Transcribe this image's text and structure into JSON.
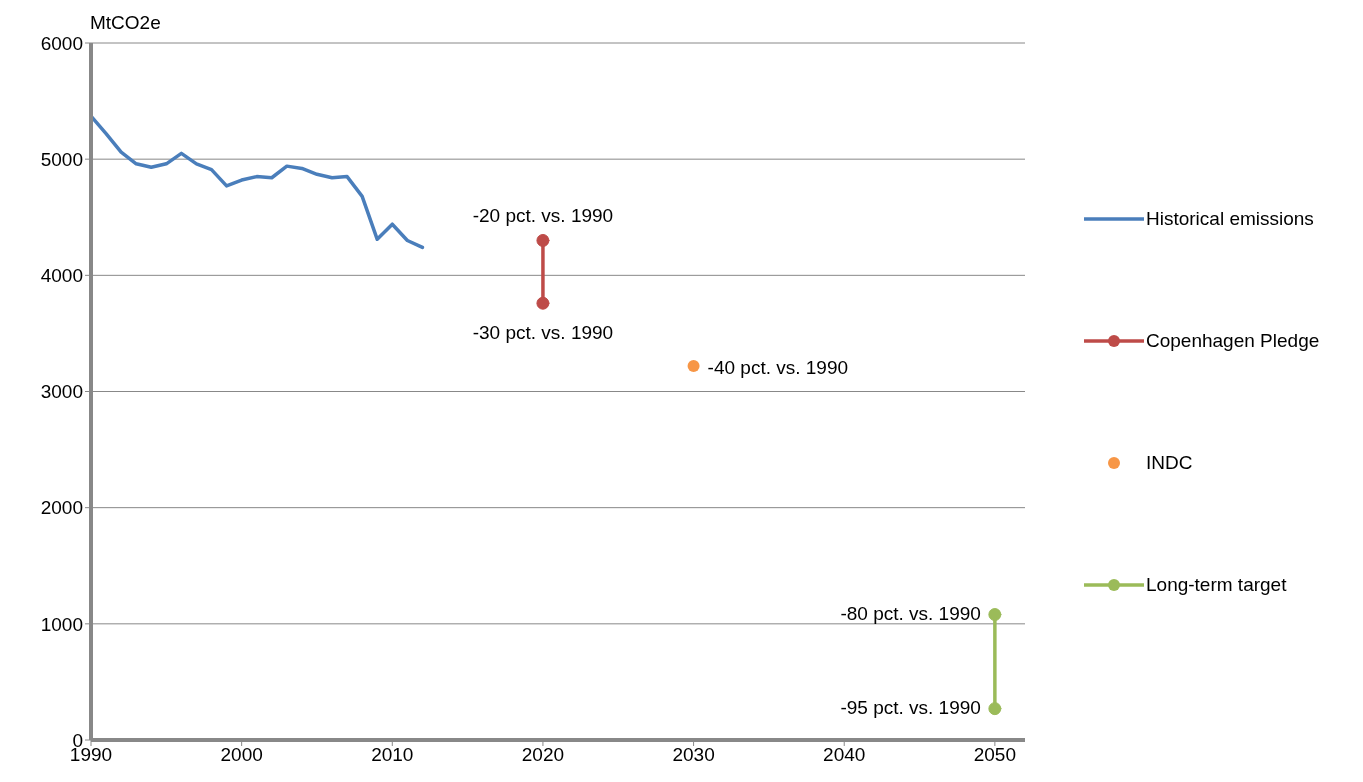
{
  "chart_data": {
    "type": "line",
    "ylabel": "MtCO2e",
    "xlim": [
      1990,
      2052
    ],
    "xticks": [
      1990,
      2000,
      2010,
      2020,
      2030,
      2040,
      2050
    ],
    "ylim": [
      0,
      6000
    ],
    "yticks": [
      0,
      1000,
      2000,
      3000,
      4000,
      5000,
      6000
    ],
    "grid": "y",
    "legend": "right",
    "line_style": "solid",
    "series": [
      {
        "name": "Historical emissions",
        "color": "#4a7ebb",
        "marker": "none",
        "x": [
          1990,
          1991,
          1992,
          1993,
          1994,
          1995,
          1996,
          1997,
          1998,
          1999,
          2000,
          2001,
          2002,
          2003,
          2004,
          2005,
          2006,
          2007,
          2008,
          2009,
          2010,
          2011,
          2012
        ],
        "values": [
          5370,
          5220,
          5060,
          4960,
          4930,
          4960,
          5050,
          4960,
          4910,
          4770,
          4820,
          4850,
          4840,
          4940,
          4920,
          4870,
          4840,
          4850,
          4680,
          4310,
          4440,
          4300,
          4240
        ]
      },
      {
        "name": "Copenhagen Pledge",
        "color": "#be4b48",
        "marker": "circle",
        "x": [
          2020,
          2020
        ],
        "values": [
          4300,
          3760
        ]
      },
      {
        "name": "INDC",
        "type": "scatter",
        "color": "#f79646",
        "marker": "circle",
        "x": [
          2030
        ],
        "values": [
          3220
        ]
      },
      {
        "name": "Long-term target",
        "color": "#9bbb59",
        "marker": "circle",
        "x": [
          2050,
          2050
        ],
        "values": [
          1080,
          270
        ]
      }
    ],
    "annotations": [
      {
        "text": "-20 pct. vs. 1990",
        "x": 2020,
        "y": 4300
      },
      {
        "text": "-30 pct. vs. 1990",
        "x": 2020,
        "y": 3760
      },
      {
        "text": "-40 pct. vs. 1990",
        "x": 2030,
        "y": 3220
      },
      {
        "text": "-80 pct. vs. 1990",
        "x": 2050,
        "y": 1080
      },
      {
        "text": "-95 pct. vs. 1990",
        "x": 2050,
        "y": 270
      }
    ]
  }
}
